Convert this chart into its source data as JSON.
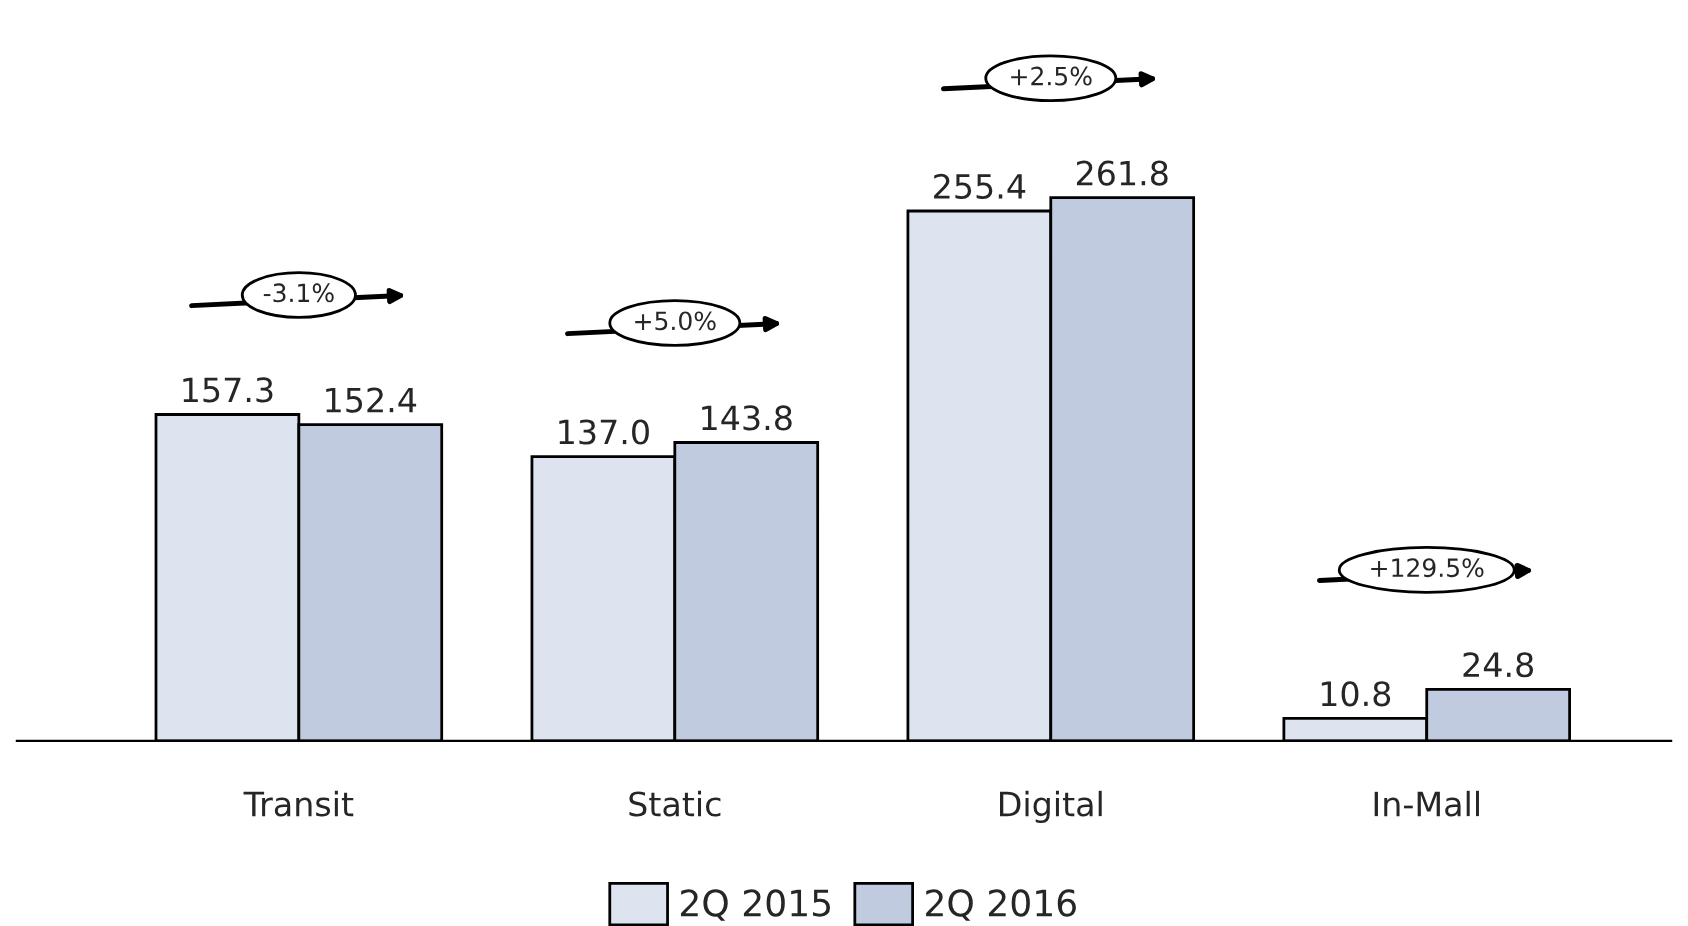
{
  "chart_data": {
    "type": "bar",
    "categories": [
      "Transit",
      "Static",
      "Digital",
      "In-Mall"
    ],
    "series": [
      {
        "name": "2Q 2015",
        "color": "#dde3ef",
        "values": [
          157.3,
          137.0,
          255.4,
          10.8
        ],
        "value_labels": [
          "157.3",
          "137.0",
          "255.4",
          "10.8"
        ]
      },
      {
        "name": "2Q 2016",
        "color": "#c1cbe0",
        "values": [
          152.4,
          143.8,
          261.8,
          24.8
        ],
        "value_labels": [
          "152.4",
          "143.8",
          "261.8",
          "24.8"
        ]
      }
    ],
    "legend": "bottom",
    "grid": false,
    "annotations": [
      "-3.1%",
      "+5.0%",
      "+2.5%",
      "+129.5%"
    ]
  }
}
